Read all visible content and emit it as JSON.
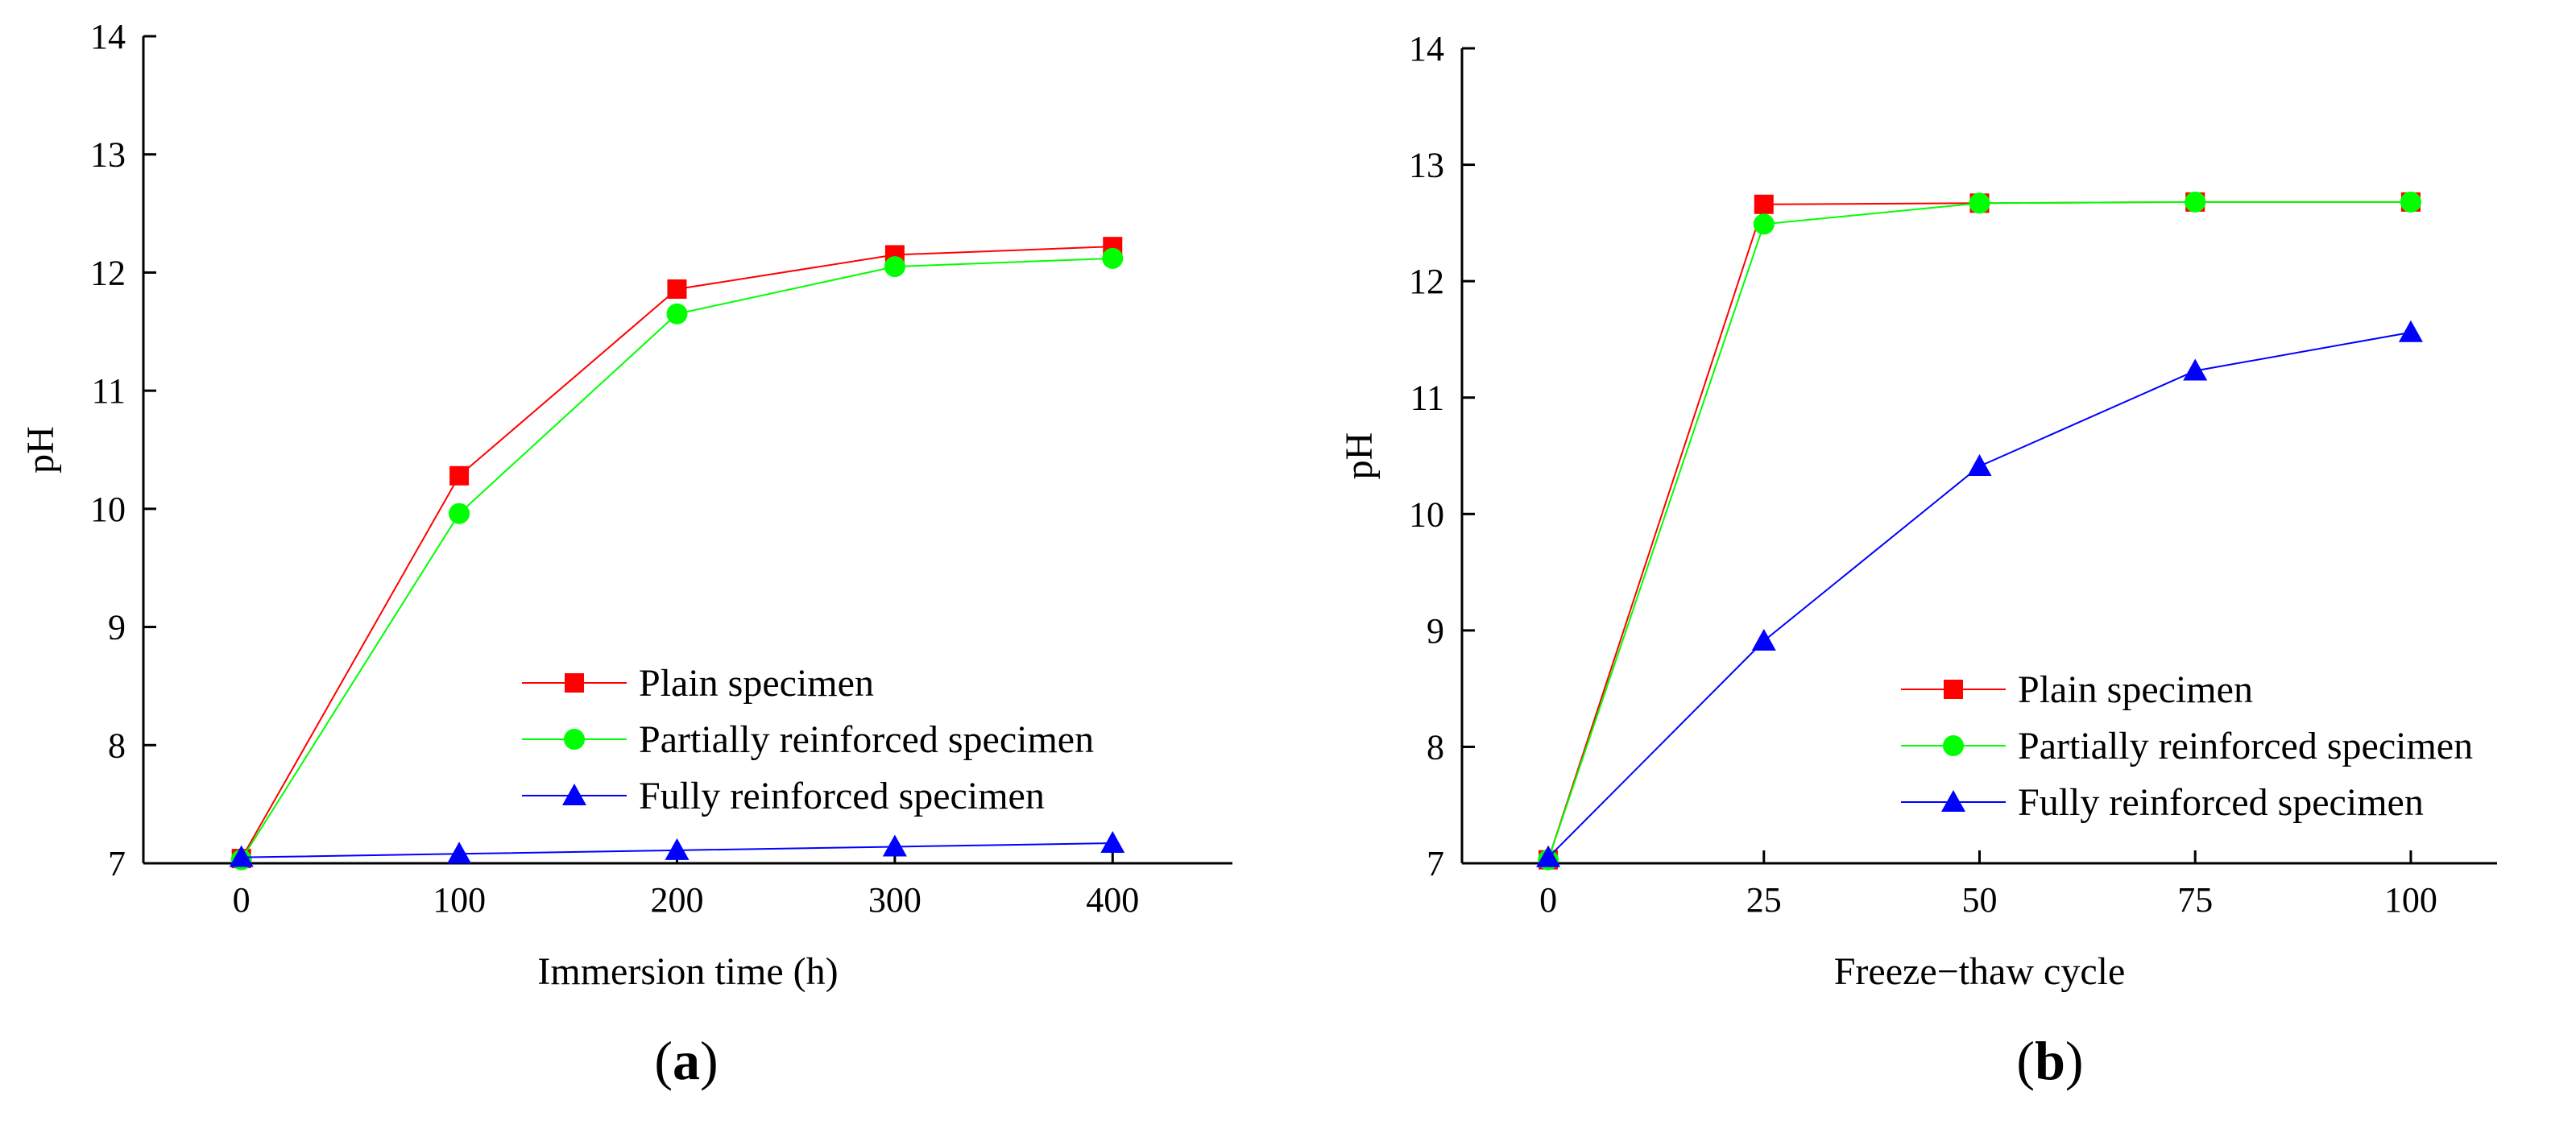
{
  "chart_data": [
    {
      "type": "line",
      "panel_label": "a",
      "title": "",
      "xlabel": "Immersion time (h)",
      "ylabel": "pH",
      "x": [
        0,
        100,
        200,
        300,
        400
      ],
      "xticks": [
        0,
        100,
        200,
        300,
        400
      ],
      "xlim": [
        -45,
        455
      ],
      "yticks": [
        7,
        8,
        9,
        10,
        11,
        12,
        13,
        14
      ],
      "ylim": [
        7,
        14
      ],
      "grid": false,
      "legend_position": "lower-right",
      "series": [
        {
          "name": "Plain specimen",
          "color": "#ff0000",
          "marker": "square",
          "values": [
            7.04,
            10.28,
            11.86,
            12.15,
            12.22
          ]
        },
        {
          "name": "Partially reinforced specimen",
          "color": "#00ff00",
          "marker": "circle",
          "values": [
            7.03,
            9.96,
            11.65,
            12.05,
            12.12
          ]
        },
        {
          "name": "Fully reinforced specimen",
          "color": "#0000ff",
          "marker": "triangle",
          "values": [
            7.05,
            7.08,
            7.11,
            7.14,
            7.17
          ]
        }
      ]
    },
    {
      "type": "line",
      "panel_label": "b",
      "title": "",
      "xlabel": "Freeze−thaw cycle",
      "ylabel": "pH",
      "x": [
        0,
        25,
        50,
        75,
        100
      ],
      "xticks": [
        0,
        25,
        50,
        75,
        100
      ],
      "xlim": [
        -10,
        110
      ],
      "yticks": [
        7,
        8,
        9,
        10,
        11,
        12,
        13,
        14
      ],
      "ylim": [
        7,
        14
      ],
      "grid": false,
      "legend_position": "lower-right",
      "series": [
        {
          "name": "Plain specimen",
          "color": "#ff0000",
          "marker": "square",
          "values": [
            7.03,
            12.66,
            12.67,
            12.68,
            12.68
          ]
        },
        {
          "name": "Partially reinforced specimen",
          "color": "#00ff00",
          "marker": "circle",
          "values": [
            7.03,
            12.49,
            12.67,
            12.68,
            12.68
          ]
        },
        {
          "name": "Fully reinforced specimen",
          "color": "#0000ff",
          "marker": "triangle",
          "values": [
            7.05,
            8.91,
            10.41,
            11.23,
            11.56
          ]
        }
      ]
    }
  ]
}
